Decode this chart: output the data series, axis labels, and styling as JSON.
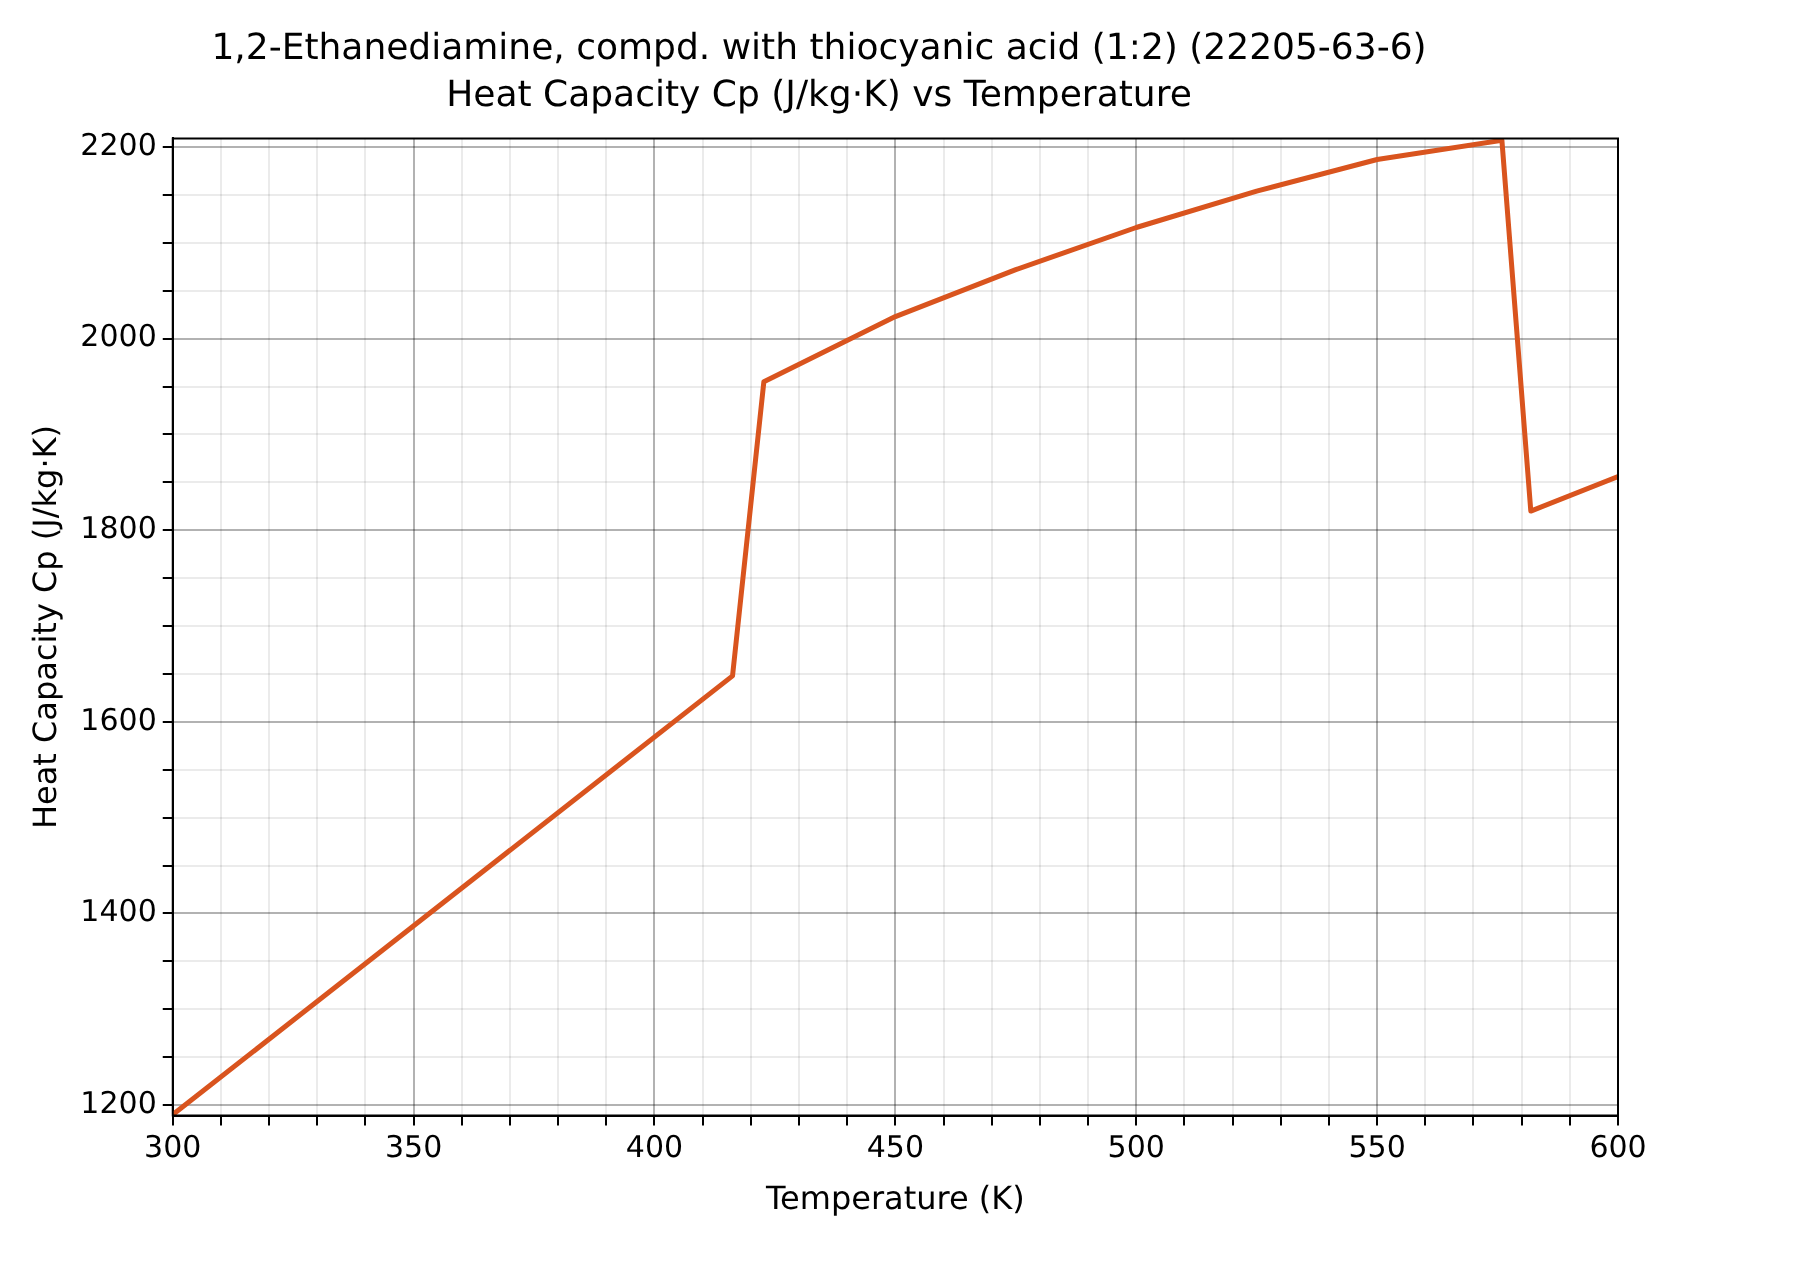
{
  "chart_data": {
    "type": "line",
    "title": "1,2-Ethanediamine, compd. with thiocyanic acid (1:2) (22205-63-6)",
    "subtitle": "Heat Capacity Cp (J/kg·K) vs Temperature",
    "xlabel": "Temperature (K)",
    "ylabel": "Heat Capacity Cp (J/kg·K)",
    "x": [
      300,
      416.2,
      422.7,
      450,
      475,
      500,
      525,
      550,
      575.9,
      581.9,
      600
    ],
    "series": [
      {
        "color": "#d9541e",
        "values": [
          1190,
          1648,
          1955,
          2023,
          2072,
          2116,
          2154,
          2187,
          2207,
          1820,
          1856
        ]
      }
    ],
    "xlim": [
      300,
      600
    ],
    "ylim": [
      1189,
      2209
    ],
    "xticks": [
      300,
      {
        "value": 310,
        "label": null
      },
      {
        "value": 320,
        "label": null
      },
      {
        "value": 330,
        "label": null
      },
      {
        "value": 340,
        "label": null
      },
      350,
      {
        "value": 360,
        "label": null
      },
      {
        "value": 370,
        "label": null
      },
      {
        "value": 380,
        "label": null
      },
      {
        "value": 390,
        "label": null
      },
      400,
      {
        "value": 410,
        "label": null
      },
      {
        "value": 420,
        "label": null
      },
      {
        "value": 430,
        "label": null
      },
      {
        "value": 440,
        "label": null
      },
      450,
      {
        "value": 460,
        "label": null
      },
      {
        "value": 470,
        "label": null
      },
      {
        "value": 480,
        "label": null
      },
      {
        "value": 490,
        "label": null
      },
      500,
      {
        "value": 510,
        "label": null
      },
      {
        "value": 520,
        "label": null
      },
      {
        "value": 530,
        "label": null
      },
      {
        "value": 540,
        "label": null
      },
      550,
      {
        "value": 560,
        "label": null
      },
      {
        "value": 570,
        "label": null
      },
      {
        "value": 580,
        "label": null
      },
      {
        "value": 590,
        "label": null
      },
      600
    ],
    "yticks": [
      1200,
      {
        "value": 1250,
        "label": null
      },
      {
        "value": 1300,
        "label": null
      },
      {
        "value": 1350,
        "label": null
      },
      1400,
      {
        "value": 1450,
        "label": null
      },
      {
        "value": 1500,
        "label": null
      },
      {
        "value": 1550,
        "label": null
      },
      1600,
      {
        "value": 1650,
        "label": null
      },
      {
        "value": 1700,
        "label": null
      },
      {
        "value": 1750,
        "label": null
      },
      1800,
      {
        "value": 1850,
        "label": null
      },
      {
        "value": 1900,
        "label": null
      },
      {
        "value": 1950,
        "label": null
      },
      2000,
      {
        "value": 2050,
        "label": null
      },
      {
        "value": 2100,
        "label": null
      },
      {
        "value": 2150,
        "label": null
      },
      2200
    ],
    "grid": true,
    "legend": false,
    "marker": "none",
    "line_style": "solid"
  }
}
